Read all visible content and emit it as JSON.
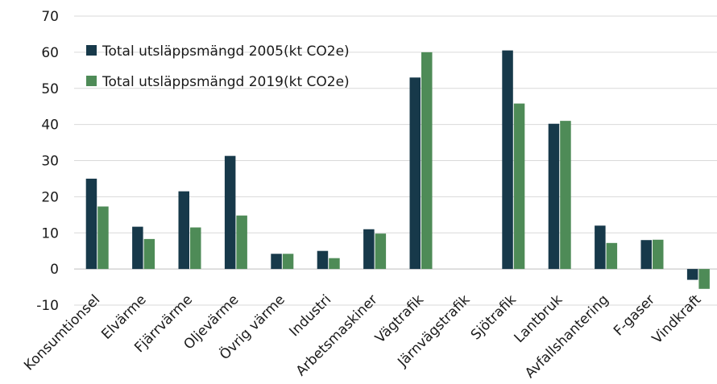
{
  "chart_data": {
    "type": "bar",
    "categories": [
      "Konsumtionsel",
      "Elvärme",
      "Fjärrvärme",
      "Oljevärme",
      "Övrig värme",
      "Industri",
      "Arbetsmaskiner",
      "Vägtrafik",
      "Järnvägstrafik",
      "Sjötrafik",
      "Lantbruk",
      "Avfallshantering",
      "F-gaser",
      "Vindkraft"
    ],
    "series": [
      {
        "name": "Total utsläppsmängd 2005(kt CO2e)",
        "color": "#17394a",
        "values": [
          25,
          11.7,
          21.5,
          31.3,
          4.2,
          5,
          11,
          53,
          0,
          60.5,
          40.2,
          12,
          8,
          -3
        ]
      },
      {
        "name": "Total utsläppsmängd 2019(kt CO2e)",
        "color": "#4e8b57",
        "values": [
          17.3,
          8.3,
          11.5,
          14.8,
          4.2,
          3,
          9.8,
          60,
          0,
          45.8,
          41,
          7.2,
          8.1,
          -5.5
        ]
      }
    ],
    "yticks": [
      -10,
      0,
      10,
      20,
      30,
      40,
      50,
      60,
      70
    ],
    "ylim": [
      -10,
      70
    ],
    "grid": true,
    "legend_position": "top-left",
    "title": "",
    "xlabel": "",
    "ylabel": ""
  }
}
